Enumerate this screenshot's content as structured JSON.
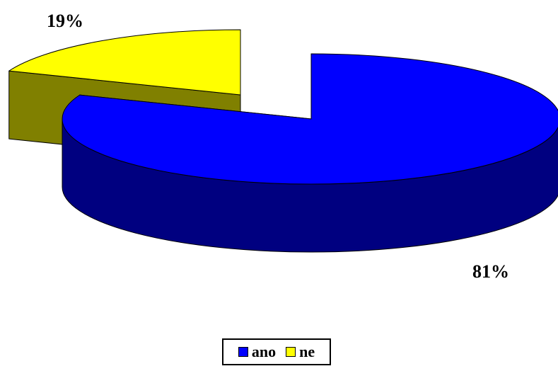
{
  "chart_data": {
    "type": "pie",
    "style": "3d-exploded",
    "slices": [
      {
        "name": "ano",
        "value": 81,
        "label": "81%",
        "color": "#0000FF",
        "side_color": "#000080"
      },
      {
        "name": "ne",
        "value": 19,
        "label": "19%",
        "color": "#FFFF00",
        "side_color": "#808000"
      }
    ],
    "legend": {
      "position": "bottom-center",
      "entries": [
        "ano",
        "ne"
      ]
    }
  }
}
